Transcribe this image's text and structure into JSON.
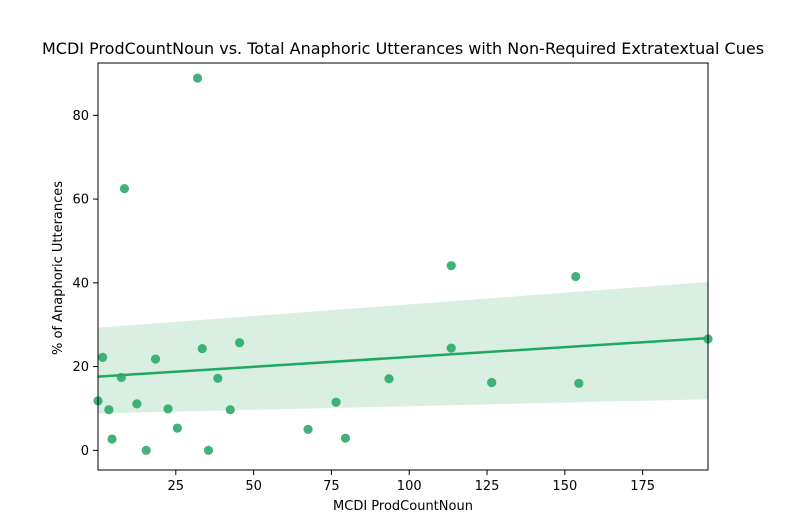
{
  "chart_data": {
    "type": "scatter",
    "title": "MCDI ProdCountNoun vs. Total Anaphoric Utterances with Non-Required Extratextual Cues",
    "xlabel": "MCDI ProdCountNoun",
    "ylabel": "% of Anaphoric Utterances",
    "xlim": [
      0,
      196
    ],
    "ylim": [
      -4.7,
      92.5
    ],
    "xticks": [
      25,
      50,
      75,
      100,
      125,
      150,
      175
    ],
    "yticks": [
      0,
      20,
      40,
      60,
      80
    ],
    "grid": false,
    "colors": {
      "points": "#2eaa6a",
      "line": "#20a860",
      "band": "#d8efe2",
      "frame": "#000000"
    },
    "points": [
      {
        "x": 0,
        "y": 11.8
      },
      {
        "x": 1.5,
        "y": 22.2
      },
      {
        "x": 3.5,
        "y": 9.7
      },
      {
        "x": 4.5,
        "y": 2.7
      },
      {
        "x": 7.5,
        "y": 17.4
      },
      {
        "x": 8.5,
        "y": 62.5
      },
      {
        "x": 12.5,
        "y": 11.1
      },
      {
        "x": 15.5,
        "y": 0.0
      },
      {
        "x": 18.5,
        "y": 21.8
      },
      {
        "x": 22.5,
        "y": 9.9
      },
      {
        "x": 25.5,
        "y": 5.3
      },
      {
        "x": 32,
        "y": 88.9
      },
      {
        "x": 33.5,
        "y": 24.3
      },
      {
        "x": 35.5,
        "y": 0.0
      },
      {
        "x": 38.5,
        "y": 17.2
      },
      {
        "x": 42.5,
        "y": 9.7
      },
      {
        "x": 45.5,
        "y": 25.7
      },
      {
        "x": 67.5,
        "y": 5.0
      },
      {
        "x": 76.5,
        "y": 11.5
      },
      {
        "x": 79.5,
        "y": 2.9
      },
      {
        "x": 93.5,
        "y": 17.1
      },
      {
        "x": 113.5,
        "y": 44.1
      },
      {
        "x": 113.5,
        "y": 24.4
      },
      {
        "x": 126.5,
        "y": 16.2
      },
      {
        "x": 153.5,
        "y": 41.5
      },
      {
        "x": 154.5,
        "y": 16.0
      },
      {
        "x": 196,
        "y": 26.6
      }
    ],
    "regression": {
      "x": [
        0,
        196
      ],
      "y": [
        17.6,
        26.8
      ],
      "ci_lower": [
        8.8,
        12.2
      ],
      "ci_upper": [
        29.3,
        40.2
      ]
    }
  }
}
